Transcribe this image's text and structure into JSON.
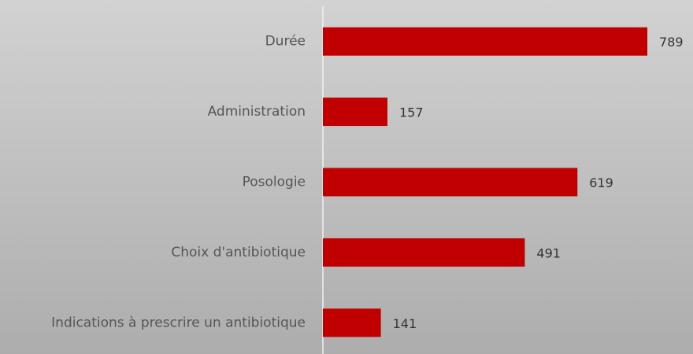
{
  "chart_data": {
    "type": "bar",
    "orientation": "horizontal",
    "categories": [
      "Durée",
      "Administration",
      "Posologie",
      "Choix d'antibiotique",
      "Indications à prescrire un antibiotique"
    ],
    "values": [
      789,
      157,
      619,
      491,
      141
    ],
    "color": "#c00000",
    "xlim": [
      0,
      900
    ]
  }
}
